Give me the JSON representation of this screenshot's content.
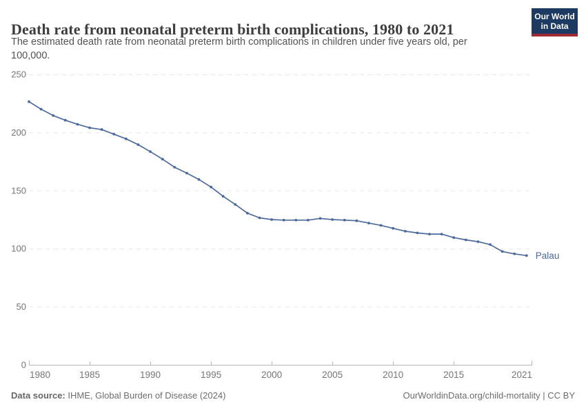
{
  "header": {
    "title": "Death rate from neonatal preterm birth complications, 1980 to 2021",
    "subtitle": "The estimated death rate from neonatal preterm birth complications in children under five years old, per 100,000.",
    "logo": {
      "line1": "Our World",
      "line2": "in Data"
    }
  },
  "footer": {
    "datasource_label": "Data source:",
    "datasource_value": "IHME, Global Burden of Disease (2024)",
    "attribution": "OurWorldinData.org/child-mortality | CC BY"
  },
  "chart_data": {
    "type": "line",
    "title": "Death rate from neonatal preterm birth complications, 1980 to 2021",
    "xlabel": "",
    "ylabel": "",
    "xlim": [
      1980,
      2021
    ],
    "ylim": [
      0,
      250
    ],
    "grid": "horizontal-dashed",
    "legend_position": "end-of-line-label",
    "x_ticks": [
      1980,
      1985,
      1990,
      1995,
      2000,
      2005,
      2010,
      2015,
      2021
    ],
    "y_ticks": [
      0,
      50,
      100,
      150,
      200,
      250
    ],
    "x": [
      1980,
      1981,
      1982,
      1983,
      1984,
      1985,
      1986,
      1987,
      1988,
      1989,
      1990,
      1991,
      1992,
      1993,
      1994,
      1995,
      1996,
      1997,
      1998,
      1999,
      2000,
      2001,
      2002,
      2003,
      2004,
      2005,
      2006,
      2007,
      2008,
      2009,
      2010,
      2011,
      2012,
      2013,
      2014,
      2015,
      2016,
      2017,
      2018,
      2019,
      2020,
      2021
    ],
    "series": [
      {
        "name": "Palau",
        "values": [
          226.5,
          220,
          214.5,
          210.5,
          207,
          204,
          202.5,
          198.5,
          194.5,
          189.5,
          183.5,
          177,
          170,
          165,
          159.5,
          153,
          145,
          138,
          130.5,
          126.5,
          125,
          124.5,
          124.5,
          124.5,
          126,
          125,
          124.5,
          124,
          122,
          120,
          117.5,
          115,
          113.5,
          112.5,
          112.5,
          109.5,
          107.5,
          106,
          103.5,
          97.5,
          95.5,
          94
        ]
      }
    ],
    "colors": {
      "line": "#4C6A9D",
      "end_label": "#4C6A9D",
      "gridline": "#e7e7e7",
      "axis": "#b5b5b5",
      "tick_label": "#757575"
    }
  }
}
